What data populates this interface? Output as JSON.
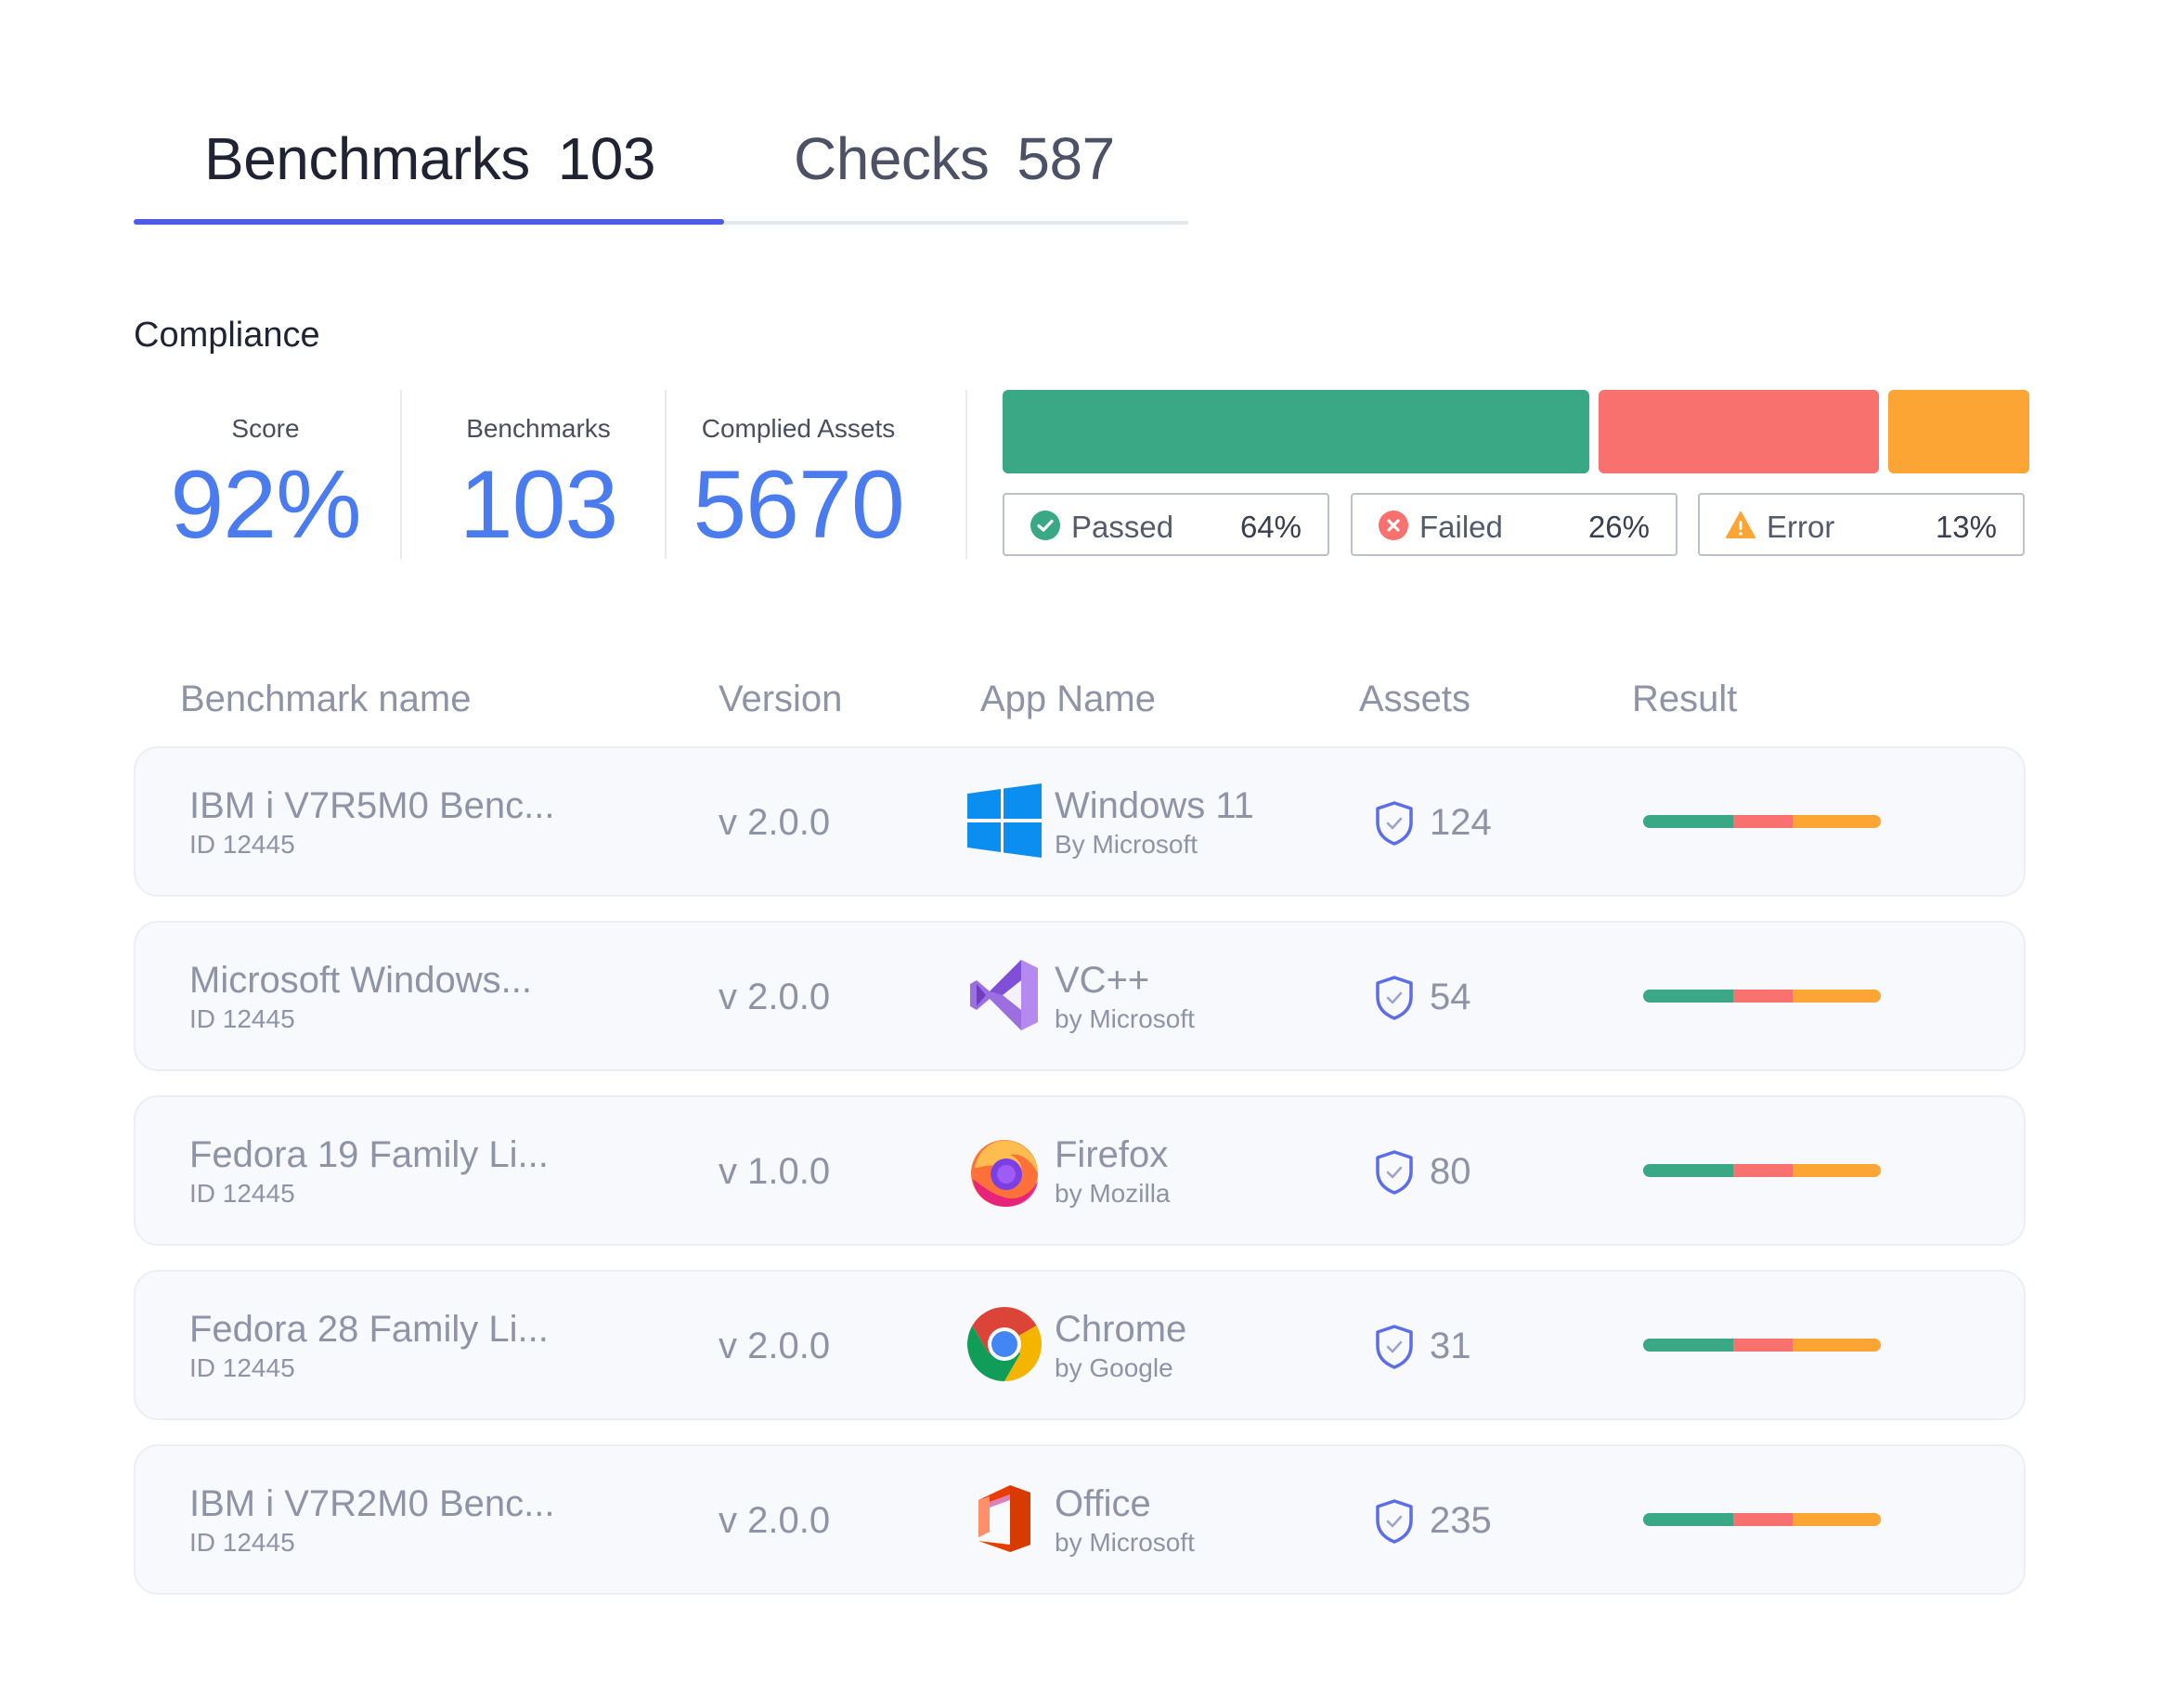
{
  "tabs": [
    {
      "label": "Benchmarks",
      "count": "103",
      "active": true
    },
    {
      "label": "Checks",
      "count": "587",
      "active": false
    }
  ],
  "compliance": {
    "title": "Compliance",
    "stats": [
      {
        "label": "Score",
        "value": "92%"
      },
      {
        "label": "Benchmarks",
        "value": "103"
      },
      {
        "label": "Complied Assets",
        "value": "5670"
      }
    ],
    "breakdown": [
      {
        "label": "Passed",
        "pct": "64%",
        "value": 64,
        "color": "#3aa884",
        "icon": "check-circle-icon"
      },
      {
        "label": "Failed",
        "pct": "26%",
        "value": 26,
        "color": "#f8716e",
        "icon": "x-circle-icon"
      },
      {
        "label": "Error",
        "pct": "13%",
        "value": 13,
        "color": "#fca534",
        "icon": "warning-triangle-icon"
      }
    ]
  },
  "table": {
    "headers": {
      "name": "Benchmark name",
      "version": "Version",
      "app": "App Name",
      "assets": "Assets",
      "result": "Result"
    },
    "rows": [
      {
        "name": "IBM i V7R5M0 Benc...",
        "id": "ID 12445",
        "version": "v 2.0.0",
        "app": "Windows 11",
        "vendor": "By Microsoft",
        "icon": "windows-logo-icon",
        "assets": "124",
        "result": [
          38,
          25,
          37
        ]
      },
      {
        "name": "Microsoft Windows...",
        "id": "ID 12445",
        "version": "v 2.0.0",
        "app": "VC++",
        "vendor": "by Microsoft",
        "icon": "visual-studio-logo-icon",
        "assets": "54",
        "result": [
          38,
          25,
          37
        ]
      },
      {
        "name": "Fedora 19 Family Li...",
        "id": "ID 12445",
        "version": "v 1.0.0",
        "app": "Firefox",
        "vendor": "by Mozilla",
        "icon": "firefox-logo-icon",
        "assets": "80",
        "result": [
          38,
          25,
          37
        ]
      },
      {
        "name": "Fedora 28 Family Li...",
        "id": "ID 12445",
        "version": "v 2.0.0",
        "app": "Chrome",
        "vendor": "by Google",
        "icon": "chrome-logo-icon",
        "assets": "31",
        "result": [
          38,
          25,
          37
        ]
      },
      {
        "name": "IBM i V7R2M0 Benc...",
        "id": "ID 12445",
        "version": "v 2.0.0",
        "app": "Office",
        "vendor": "by Microsoft",
        "icon": "office-logo-icon",
        "assets": "235",
        "result": [
          38,
          25,
          37
        ]
      }
    ],
    "result_colors": [
      "#3aa884",
      "#f8716e",
      "#fca534"
    ]
  }
}
